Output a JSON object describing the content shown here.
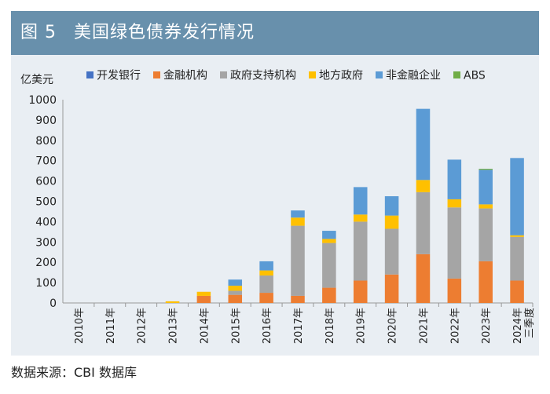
{
  "header": {
    "figure": "图 5",
    "title": "美国绿色债券发行情况"
  },
  "footer": {
    "source": "数据来源：CBI 数据库"
  },
  "chart_data": {
    "type": "bar",
    "stacked": true,
    "ylabel": "亿美元",
    "ylim": [
      0,
      1000
    ],
    "yticks": [
      0,
      100,
      200,
      300,
      400,
      500,
      600,
      700,
      800,
      900,
      1000
    ],
    "legend_position": "top",
    "categories": [
      "2010年",
      "2011年",
      "2012年",
      "2013年",
      "2014年",
      "2015年",
      "2016年",
      "2017年",
      "2018年",
      "2019年",
      "2020年",
      "2021年",
      "2022年",
      "2023年",
      "2024年三季度"
    ],
    "series": [
      {
        "name": "开发银行",
        "color": "#4472c4",
        "values": [
          0,
          0,
          0,
          0,
          0,
          0,
          0,
          0,
          0,
          0,
          0,
          0,
          0,
          0,
          0
        ]
      },
      {
        "name": "金融机构",
        "color": "#ed7d31",
        "values": [
          0,
          0,
          0,
          0,
          35,
          40,
          50,
          35,
          75,
          110,
          140,
          240,
          120,
          205,
          110
        ]
      },
      {
        "name": "政府支持机构",
        "color": "#a5a5a5",
        "values": [
          0,
          0,
          0,
          0,
          0,
          20,
          85,
          345,
          220,
          290,
          225,
          305,
          350,
          260,
          215
        ]
      },
      {
        "name": "地方政府",
        "color": "#ffc000",
        "values": [
          0,
          0,
          0,
          8,
          20,
          25,
          25,
          40,
          20,
          35,
          65,
          60,
          40,
          20,
          8
        ]
      },
      {
        "name": "非金融企业",
        "color": "#5b9bd5",
        "values": [
          0,
          0,
          0,
          0,
          0,
          30,
          45,
          35,
          40,
          135,
          95,
          350,
          195,
          170,
          380
        ]
      },
      {
        "name": "ABS",
        "color": "#70ad47",
        "values": [
          0,
          0,
          0,
          0,
          0,
          0,
          0,
          0,
          0,
          0,
          0,
          0,
          0,
          5,
          0
        ]
      }
    ]
  }
}
